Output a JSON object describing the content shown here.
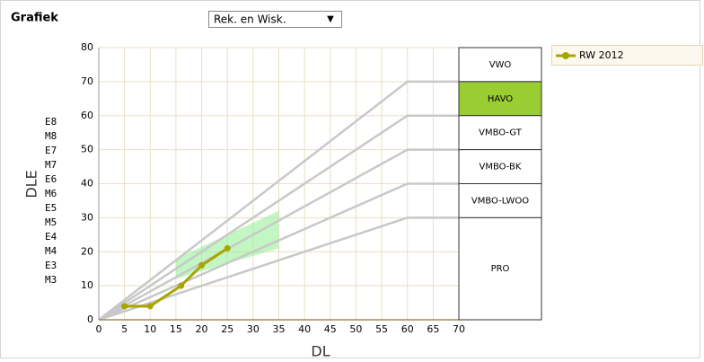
{
  "header": {
    "title": "Grafiek"
  },
  "dropdown": {
    "selected": "Rek. en Wisk.",
    "arrow": "▼"
  },
  "side_labels": [
    "E8",
    "M8",
    "E7",
    "M7",
    "E6",
    "M6",
    "E5",
    "M5",
    "E4",
    "M4",
    "E3",
    "M3"
  ],
  "chart_data": {
    "type": "line",
    "x_label": "DL",
    "y_label": "DLE",
    "xlim": [
      0,
      70
    ],
    "ylim": [
      0,
      80
    ],
    "xticks": [
      0,
      5,
      10,
      15,
      20,
      25,
      30,
      35,
      40,
      45,
      50,
      55,
      60,
      65,
      70
    ],
    "yticks": [
      0,
      10,
      20,
      30,
      40,
      50,
      60,
      70,
      80
    ],
    "grid": true,
    "legend": "top-right",
    "series": [
      {
        "name": "RW 2012",
        "color": "#a8a400",
        "x": [
          5,
          10,
          16,
          20,
          25
        ],
        "values": [
          4,
          4,
          10,
          16,
          21
        ]
      }
    ],
    "band": {
      "color": "#90ee90",
      "x": [
        15,
        35
      ],
      "lower": [
        12,
        21
      ],
      "upper": [
        18,
        32
      ]
    },
    "reference_lines": [
      {
        "x": [
          0,
          60,
          70
        ],
        "y": [
          0,
          70,
          70
        ]
      },
      {
        "x": [
          0,
          60,
          70
        ],
        "y": [
          0,
          60,
          60
        ]
      },
      {
        "x": [
          0,
          60,
          70
        ],
        "y": [
          0,
          50,
          50
        ]
      },
      {
        "x": [
          0,
          60,
          70
        ],
        "y": [
          0,
          40,
          40
        ]
      },
      {
        "x": [
          0,
          60,
          70
        ],
        "y": [
          0,
          30,
          30
        ]
      }
    ],
    "levels": [
      {
        "label": "VWO",
        "from": 70,
        "to": 80
      },
      {
        "label": "HAVO",
        "from": 60,
        "to": 70,
        "color": "#9acd32"
      },
      {
        "label": "VMBO-GT",
        "from": 50,
        "to": 60
      },
      {
        "label": "VMBO-BK",
        "from": 40,
        "to": 50
      },
      {
        "label": "VMBO-LWOO",
        "from": 30,
        "to": 40
      },
      {
        "label": "PRO",
        "from": 0,
        "to": 30
      }
    ]
  }
}
